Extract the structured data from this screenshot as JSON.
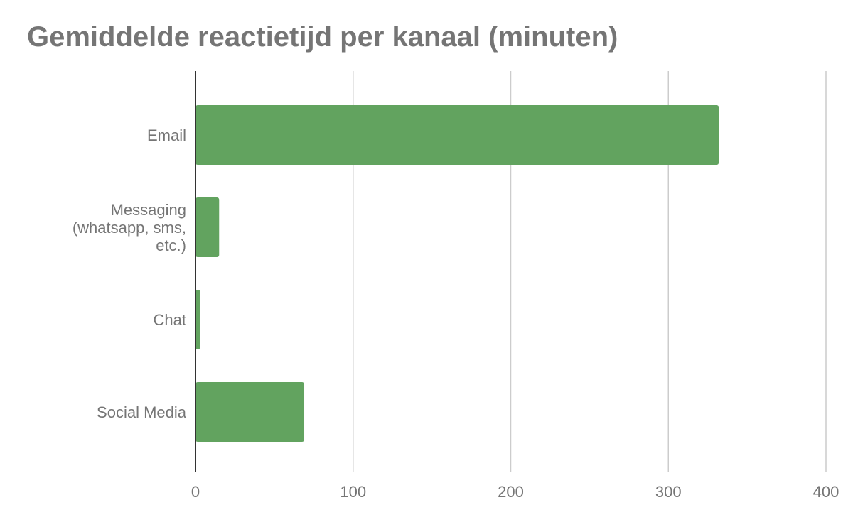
{
  "chart_data": {
    "type": "bar",
    "orientation": "horizontal",
    "title": "Gemiddelde reactietijd per kanaal (minuten)",
    "categories": [
      [
        "Email"
      ],
      [
        "Messaging",
        "(whatsapp, sms,",
        "etc.)"
      ],
      [
        "Chat"
      ],
      [
        "Social Media"
      ]
    ],
    "values": [
      332,
      15,
      3,
      69
    ],
    "xlim": [
      0,
      400
    ],
    "xticks": [
      0,
      100,
      200,
      300,
      400
    ],
    "grid": true,
    "legend": "none",
    "bar_color": "#62a35f"
  }
}
